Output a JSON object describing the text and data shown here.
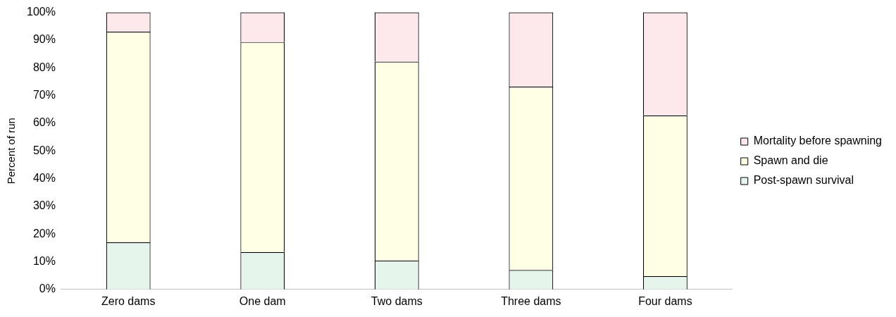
{
  "chart_data": {
    "type": "bar",
    "stacked": true,
    "ylabel": "Percent of run",
    "categories": [
      "Zero dams",
      "One dam",
      "Two dams",
      "Three dams",
      "Four dams"
    ],
    "series": [
      {
        "name": "Post-spawn survival",
        "color": "#e6f5ec",
        "values": [
          17,
          13.5,
          10.4,
          7,
          4.8
        ]
      },
      {
        "name": "Spawn and die",
        "color": "#ffffe5",
        "values": [
          76,
          75.8,
          71.8,
          66.2,
          58
        ]
      },
      {
        "name": "Mortality before spawning",
        "color": "#fde9ec",
        "values": [
          7,
          10.7,
          17.8,
          26.8,
          37.2
        ]
      }
    ],
    "ylim": [
      0,
      100
    ],
    "yticks": [
      {
        "value": 0,
        "label": "0%"
      },
      {
        "value": 10,
        "label": "10%"
      },
      {
        "value": 20,
        "label": "20%"
      },
      {
        "value": 30,
        "label": "30%"
      },
      {
        "value": 40,
        "label": "40%"
      },
      {
        "value": 50,
        "label": "50%"
      },
      {
        "value": 60,
        "label": "60%"
      },
      {
        "value": 70,
        "label": "70%"
      },
      {
        "value": 80,
        "label": "80%"
      },
      {
        "value": 90,
        "label": "90%"
      },
      {
        "value": 100,
        "label": "100%"
      }
    ],
    "grid": false,
    "legend": "right"
  }
}
